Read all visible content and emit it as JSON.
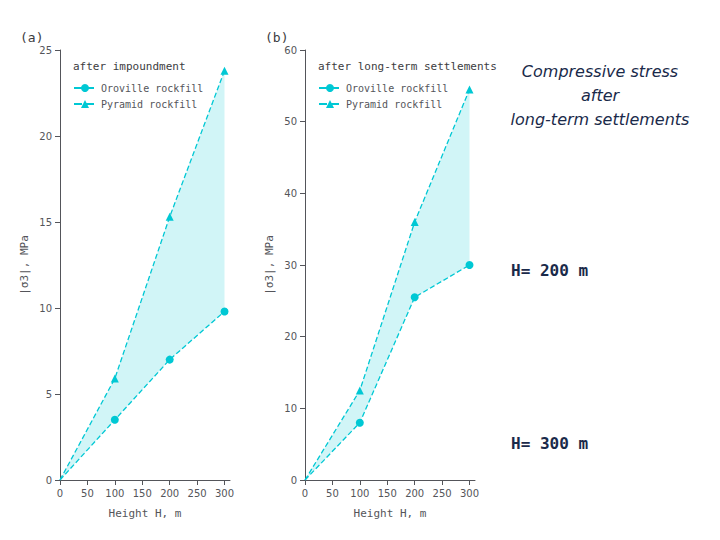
{
  "chart_data": [
    {
      "type": "line",
      "title": "after impoundment",
      "annotations": [
        "(a)"
      ],
      "xlabel": "Height H, m",
      "ylabel": "|σ3|, MPa",
      "x": [
        0,
        100,
        200,
        300
      ],
      "series": [
        {
          "name": "Oroville rockfill",
          "color": "#00c8d4",
          "marker": "circle",
          "line_style": "dashed",
          "values": [
            0,
            3.5,
            7.0,
            9.8
          ]
        },
        {
          "name": "Pyramid rockfill",
          "color": "#00c8d4",
          "marker": "triangle",
          "line_style": "dashed",
          "values": [
            0,
            5.9,
            15.3,
            23.8
          ]
        }
      ],
      "xlim": [
        0,
        310
      ],
      "xticks": [
        0,
        50,
        100,
        150,
        200,
        250,
        300
      ],
      "ylim": [
        0,
        25
      ],
      "yticks": [
        0,
        5,
        10,
        15,
        20,
        25
      ],
      "grid": false,
      "legend": "upper left"
    },
    {
      "type": "line",
      "title": "after long-term settlements",
      "annotations": [
        "(b)",
        "Compressive stress\nafter\nlong-term settlements",
        "H= 200 m",
        "H= 300 m"
      ],
      "xlabel": "Height H, m",
      "ylabel": "|σ3|, MPa",
      "x": [
        0,
        100,
        200,
        300
      ],
      "series": [
        {
          "name": "Oroville rockfill",
          "color": "#00c8d4",
          "marker": "circle",
          "line_style": "dashed",
          "values": [
            0,
            8.0,
            25.5,
            30.0
          ]
        },
        {
          "name": "Pyramid rockfill",
          "color": "#00c8d4",
          "marker": "triangle",
          "line_style": "dashed",
          "values": [
            0,
            12.5,
            36.0,
            54.5
          ]
        }
      ],
      "xlim": [
        0,
        310
      ],
      "xticks": [
        0,
        50,
        100,
        150,
        200,
        250,
        300
      ],
      "ylim": [
        0,
        60
      ],
      "yticks": [
        0,
        10,
        20,
        30,
        40,
        50,
        60
      ],
      "grid": false,
      "legend": "upper left"
    }
  ]
}
